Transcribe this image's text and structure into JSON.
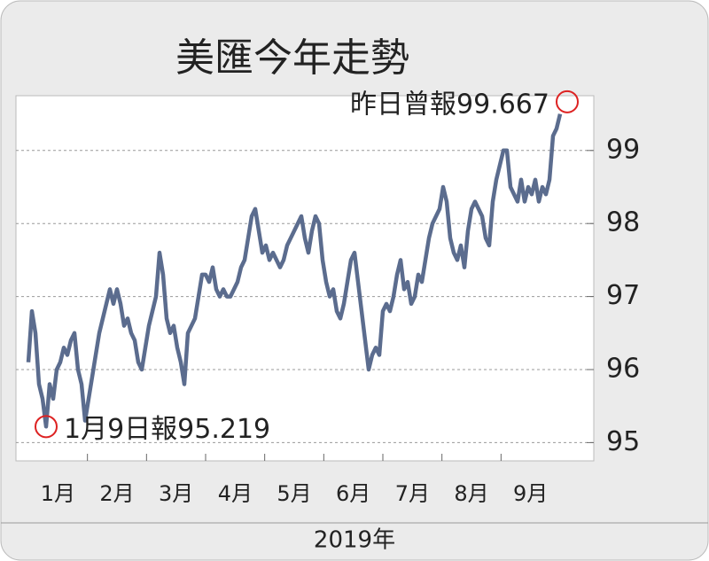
{
  "chart_data": {
    "type": "line",
    "title": "美匯今年走勢",
    "x_label": "2019年",
    "xticks": [
      "1月",
      "2月",
      "3月",
      "4月",
      "5月",
      "6月",
      "7月",
      "8月",
      "9月"
    ],
    "series": [
      {
        "color": "#5b6c8e",
        "values": [
          96.1,
          96.8,
          96.5,
          95.8,
          95.6,
          95.22,
          95.8,
          95.6,
          96.0,
          96.1,
          96.3,
          96.2,
          96.4,
          96.5,
          96.0,
          95.8,
          95.3,
          95.6,
          95.9,
          96.2,
          96.5,
          96.7,
          96.9,
          97.1,
          96.9,
          97.1,
          96.9,
          96.6,
          96.7,
          96.5,
          96.4,
          96.1,
          96.0,
          96.3,
          96.6,
          96.8,
          97.0,
          97.6,
          97.3,
          96.7,
          96.5,
          96.6,
          96.3,
          96.1,
          95.8,
          96.5,
          96.6,
          96.7,
          97.0,
          97.3,
          97.3,
          97.2,
          97.4,
          97.1,
          97.0,
          97.1,
          97.0,
          97.0,
          97.1,
          97.2,
          97.4,
          97.5,
          97.8,
          98.1,
          98.2,
          97.9,
          97.6,
          97.7,
          97.5,
          97.6,
          97.5,
          97.4,
          97.5,
          97.7,
          97.8,
          97.9,
          98.0,
          98.1,
          97.8,
          97.6,
          97.9,
          98.1,
          98.0,
          97.5,
          97.2,
          97.0,
          97.1,
          96.8,
          96.7,
          96.9,
          97.2,
          97.5,
          97.6,
          97.2,
          96.8,
          96.4,
          96.0,
          96.2,
          96.3,
          96.2,
          96.8,
          96.9,
          96.8,
          97.0,
          97.3,
          97.5,
          97.1,
          97.2,
          96.9,
          97.0,
          97.3,
          97.2,
          97.5,
          97.8,
          98.0,
          98.1,
          98.2,
          98.5,
          98.3,
          97.8,
          97.6,
          97.5,
          97.7,
          97.4,
          97.9,
          98.2,
          98.3,
          98.2,
          98.1,
          97.8,
          97.7,
          98.3,
          98.6,
          98.8,
          99.0,
          99.0,
          98.5,
          98.4,
          98.3,
          98.6,
          98.3,
          98.5,
          98.4,
          98.6,
          98.3,
          98.5,
          98.4,
          98.6,
          99.2,
          99.3,
          99.5
        ]
      }
    ],
    "annotations": [
      {
        "text": "1月9日報95.219",
        "value": 95.219
      },
      {
        "text": "昨日曾報99.667",
        "value": 99.667
      }
    ],
    "ylim": [
      94.75,
      99.75
    ],
    "yticks": [
      95,
      96,
      97,
      98,
      99
    ],
    "grid": true
  }
}
